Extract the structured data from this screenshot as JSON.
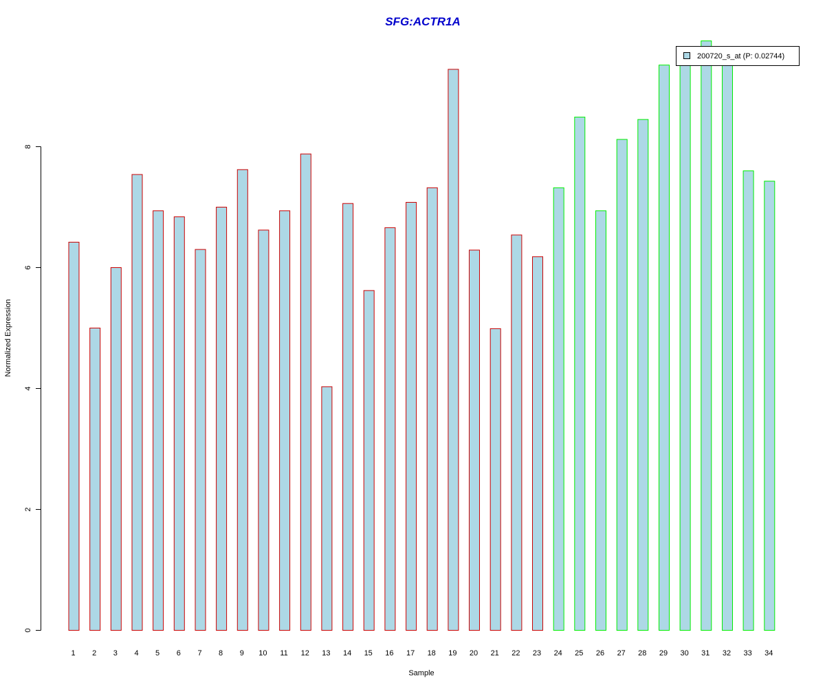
{
  "chart_data": {
    "type": "bar",
    "title": "SFG:ACTR1A",
    "xlabel": "Sample",
    "ylabel": "Normalized Expression",
    "ylim": [
      0,
      9.8
    ],
    "yticks": [
      "0",
      "2",
      "4",
      "6",
      "8"
    ],
    "categories": [
      "1",
      "2",
      "3",
      "4",
      "5",
      "6",
      "7",
      "8",
      "9",
      "10",
      "11",
      "12",
      "13",
      "14",
      "15",
      "16",
      "17",
      "18",
      "19",
      "20",
      "21",
      "22",
      "23",
      "24",
      "25",
      "26",
      "27",
      "28",
      "29",
      "30",
      "31",
      "32",
      "33",
      "34"
    ],
    "series": [
      {
        "name": "200720_s_at (P: 0.02744)",
        "values": [
          6.42,
          5.0,
          6.0,
          7.54,
          6.94,
          6.84,
          6.3,
          7.0,
          7.62,
          6.62,
          6.94,
          7.88,
          4.03,
          7.06,
          5.62,
          6.66,
          7.08,
          7.32,
          9.28,
          6.29,
          4.99,
          6.54,
          6.18,
          7.32,
          8.49,
          6.94,
          8.12,
          8.45,
          9.35,
          9.4,
          9.75,
          9.4,
          7.6,
          7.43
        ]
      }
    ],
    "groups": [
      {
        "from": 1,
        "to": 23,
        "border_color": "#cc0000"
      },
      {
        "from": 24,
        "to": 34,
        "border_color": "#00ee00"
      }
    ],
    "bar_fill": "#add8e6",
    "title_color": "#0000cc",
    "legend_placement": "top-right",
    "grid": false
  }
}
